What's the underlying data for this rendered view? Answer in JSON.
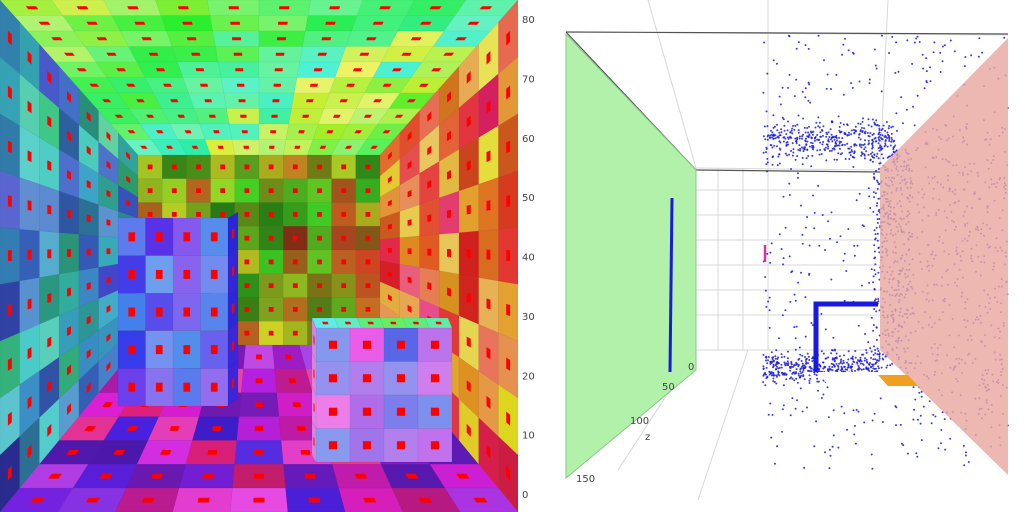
{
  "scene": {
    "render_panel": "rendered-room",
    "plot_panel": "3d-point-cloud-plot"
  },
  "axes": {
    "y_ticks": [
      "0",
      "10",
      "20",
      "30",
      "40",
      "50",
      "60",
      "70",
      "80"
    ],
    "z_ticks": [
      "0",
      "50",
      "100",
      "150"
    ],
    "z_label": "z"
  },
  "colors": {
    "points": "#1a1adf",
    "left_plane": "#a8f0a0",
    "right_plane": "#e8a8a0",
    "marker_red": "#ff0000",
    "marker_magenta": "#e0309a",
    "marker_orange": "#f0a020"
  }
}
